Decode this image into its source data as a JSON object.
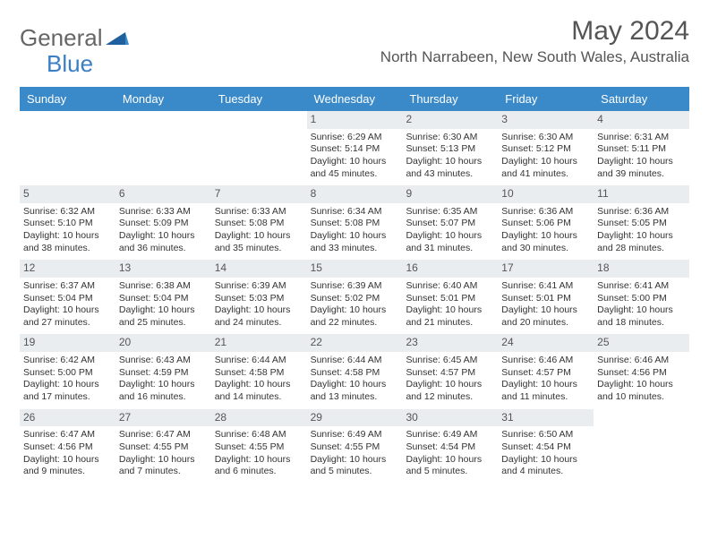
{
  "logo": {
    "part1": "General",
    "part2": "Blue"
  },
  "title": "May 2024",
  "location": "North Narrabeen, New South Wales, Australia",
  "colors": {
    "header_bg": "#3a89c9",
    "daynum_bg": "#e9edf0",
    "text": "#333333",
    "title_text": "#555555"
  },
  "daysOfWeek": [
    "Sunday",
    "Monday",
    "Tuesday",
    "Wednesday",
    "Thursday",
    "Friday",
    "Saturday"
  ],
  "weeks": [
    [
      {
        "n": "",
        "sr": "",
        "ss": "",
        "dl": ""
      },
      {
        "n": "",
        "sr": "",
        "ss": "",
        "dl": ""
      },
      {
        "n": "",
        "sr": "",
        "ss": "",
        "dl": ""
      },
      {
        "n": "1",
        "sr": "Sunrise: 6:29 AM",
        "ss": "Sunset: 5:14 PM",
        "dl": "Daylight: 10 hours and 45 minutes."
      },
      {
        "n": "2",
        "sr": "Sunrise: 6:30 AM",
        "ss": "Sunset: 5:13 PM",
        "dl": "Daylight: 10 hours and 43 minutes."
      },
      {
        "n": "3",
        "sr": "Sunrise: 6:30 AM",
        "ss": "Sunset: 5:12 PM",
        "dl": "Daylight: 10 hours and 41 minutes."
      },
      {
        "n": "4",
        "sr": "Sunrise: 6:31 AM",
        "ss": "Sunset: 5:11 PM",
        "dl": "Daylight: 10 hours and 39 minutes."
      }
    ],
    [
      {
        "n": "5",
        "sr": "Sunrise: 6:32 AM",
        "ss": "Sunset: 5:10 PM",
        "dl": "Daylight: 10 hours and 38 minutes."
      },
      {
        "n": "6",
        "sr": "Sunrise: 6:33 AM",
        "ss": "Sunset: 5:09 PM",
        "dl": "Daylight: 10 hours and 36 minutes."
      },
      {
        "n": "7",
        "sr": "Sunrise: 6:33 AM",
        "ss": "Sunset: 5:08 PM",
        "dl": "Daylight: 10 hours and 35 minutes."
      },
      {
        "n": "8",
        "sr": "Sunrise: 6:34 AM",
        "ss": "Sunset: 5:08 PM",
        "dl": "Daylight: 10 hours and 33 minutes."
      },
      {
        "n": "9",
        "sr": "Sunrise: 6:35 AM",
        "ss": "Sunset: 5:07 PM",
        "dl": "Daylight: 10 hours and 31 minutes."
      },
      {
        "n": "10",
        "sr": "Sunrise: 6:36 AM",
        "ss": "Sunset: 5:06 PM",
        "dl": "Daylight: 10 hours and 30 minutes."
      },
      {
        "n": "11",
        "sr": "Sunrise: 6:36 AM",
        "ss": "Sunset: 5:05 PM",
        "dl": "Daylight: 10 hours and 28 minutes."
      }
    ],
    [
      {
        "n": "12",
        "sr": "Sunrise: 6:37 AM",
        "ss": "Sunset: 5:04 PM",
        "dl": "Daylight: 10 hours and 27 minutes."
      },
      {
        "n": "13",
        "sr": "Sunrise: 6:38 AM",
        "ss": "Sunset: 5:04 PM",
        "dl": "Daylight: 10 hours and 25 minutes."
      },
      {
        "n": "14",
        "sr": "Sunrise: 6:39 AM",
        "ss": "Sunset: 5:03 PM",
        "dl": "Daylight: 10 hours and 24 minutes."
      },
      {
        "n": "15",
        "sr": "Sunrise: 6:39 AM",
        "ss": "Sunset: 5:02 PM",
        "dl": "Daylight: 10 hours and 22 minutes."
      },
      {
        "n": "16",
        "sr": "Sunrise: 6:40 AM",
        "ss": "Sunset: 5:01 PM",
        "dl": "Daylight: 10 hours and 21 minutes."
      },
      {
        "n": "17",
        "sr": "Sunrise: 6:41 AM",
        "ss": "Sunset: 5:01 PM",
        "dl": "Daylight: 10 hours and 20 minutes."
      },
      {
        "n": "18",
        "sr": "Sunrise: 6:41 AM",
        "ss": "Sunset: 5:00 PM",
        "dl": "Daylight: 10 hours and 18 minutes."
      }
    ],
    [
      {
        "n": "19",
        "sr": "Sunrise: 6:42 AM",
        "ss": "Sunset: 5:00 PM",
        "dl": "Daylight: 10 hours and 17 minutes."
      },
      {
        "n": "20",
        "sr": "Sunrise: 6:43 AM",
        "ss": "Sunset: 4:59 PM",
        "dl": "Daylight: 10 hours and 16 minutes."
      },
      {
        "n": "21",
        "sr": "Sunrise: 6:44 AM",
        "ss": "Sunset: 4:58 PM",
        "dl": "Daylight: 10 hours and 14 minutes."
      },
      {
        "n": "22",
        "sr": "Sunrise: 6:44 AM",
        "ss": "Sunset: 4:58 PM",
        "dl": "Daylight: 10 hours and 13 minutes."
      },
      {
        "n": "23",
        "sr": "Sunrise: 6:45 AM",
        "ss": "Sunset: 4:57 PM",
        "dl": "Daylight: 10 hours and 12 minutes."
      },
      {
        "n": "24",
        "sr": "Sunrise: 6:46 AM",
        "ss": "Sunset: 4:57 PM",
        "dl": "Daylight: 10 hours and 11 minutes."
      },
      {
        "n": "25",
        "sr": "Sunrise: 6:46 AM",
        "ss": "Sunset: 4:56 PM",
        "dl": "Daylight: 10 hours and 10 minutes."
      }
    ],
    [
      {
        "n": "26",
        "sr": "Sunrise: 6:47 AM",
        "ss": "Sunset: 4:56 PM",
        "dl": "Daylight: 10 hours and 9 minutes."
      },
      {
        "n": "27",
        "sr": "Sunrise: 6:47 AM",
        "ss": "Sunset: 4:55 PM",
        "dl": "Daylight: 10 hours and 7 minutes."
      },
      {
        "n": "28",
        "sr": "Sunrise: 6:48 AM",
        "ss": "Sunset: 4:55 PM",
        "dl": "Daylight: 10 hours and 6 minutes."
      },
      {
        "n": "29",
        "sr": "Sunrise: 6:49 AM",
        "ss": "Sunset: 4:55 PM",
        "dl": "Daylight: 10 hours and 5 minutes."
      },
      {
        "n": "30",
        "sr": "Sunrise: 6:49 AM",
        "ss": "Sunset: 4:54 PM",
        "dl": "Daylight: 10 hours and 5 minutes."
      },
      {
        "n": "31",
        "sr": "Sunrise: 6:50 AM",
        "ss": "Sunset: 4:54 PM",
        "dl": "Daylight: 10 hours and 4 minutes."
      },
      {
        "n": "",
        "sr": "",
        "ss": "",
        "dl": ""
      }
    ]
  ]
}
